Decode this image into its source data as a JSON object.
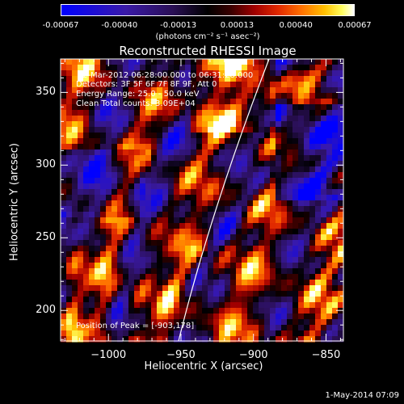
{
  "colorbar": {
    "tick_labels": [
      "-0.00067",
      "-0.00040",
      "-0.00013",
      "0.00013",
      "0.00040",
      "0.00067"
    ],
    "unit": "(photons cm⁻² s⁻¹ asec⁻²)"
  },
  "chart_data": {
    "type": "heatmap",
    "title": "Reconstructed RHESSI Image",
    "xlabel": "Heliocentric X (arcsec)",
    "ylabel": "Heliocentric Y (arcsec)",
    "xlim": [
      -1033,
      -838
    ],
    "ylim": [
      179,
      373
    ],
    "x_ticks": [
      -1000,
      -950,
      -900,
      -850
    ],
    "x_tick_labels": [
      "−1000",
      "−950",
      "−900",
      "−850"
    ],
    "y_ticks": [
      200,
      250,
      300,
      350
    ],
    "y_tick_labels": [
      "200",
      "250",
      "300",
      "350"
    ],
    "colorbar_range": [
      -0.00067,
      0.00067
    ],
    "annotations": [
      "2-Mar-2012 06:28:00.000 to 06:31:28.000",
      "Detectors: 3F 5F 6F 7F 8F 9F, Att 0",
      "Energy Range: 25.0 - 50.0 keV",
      "Clean     Total counts: 3.09E+04"
    ],
    "peak_label": "Position of Peak = [-903,178]",
    "peak_position": [
      -903,
      178
    ]
  },
  "footer": {
    "timestamp": "1-May-2014 07:09"
  }
}
